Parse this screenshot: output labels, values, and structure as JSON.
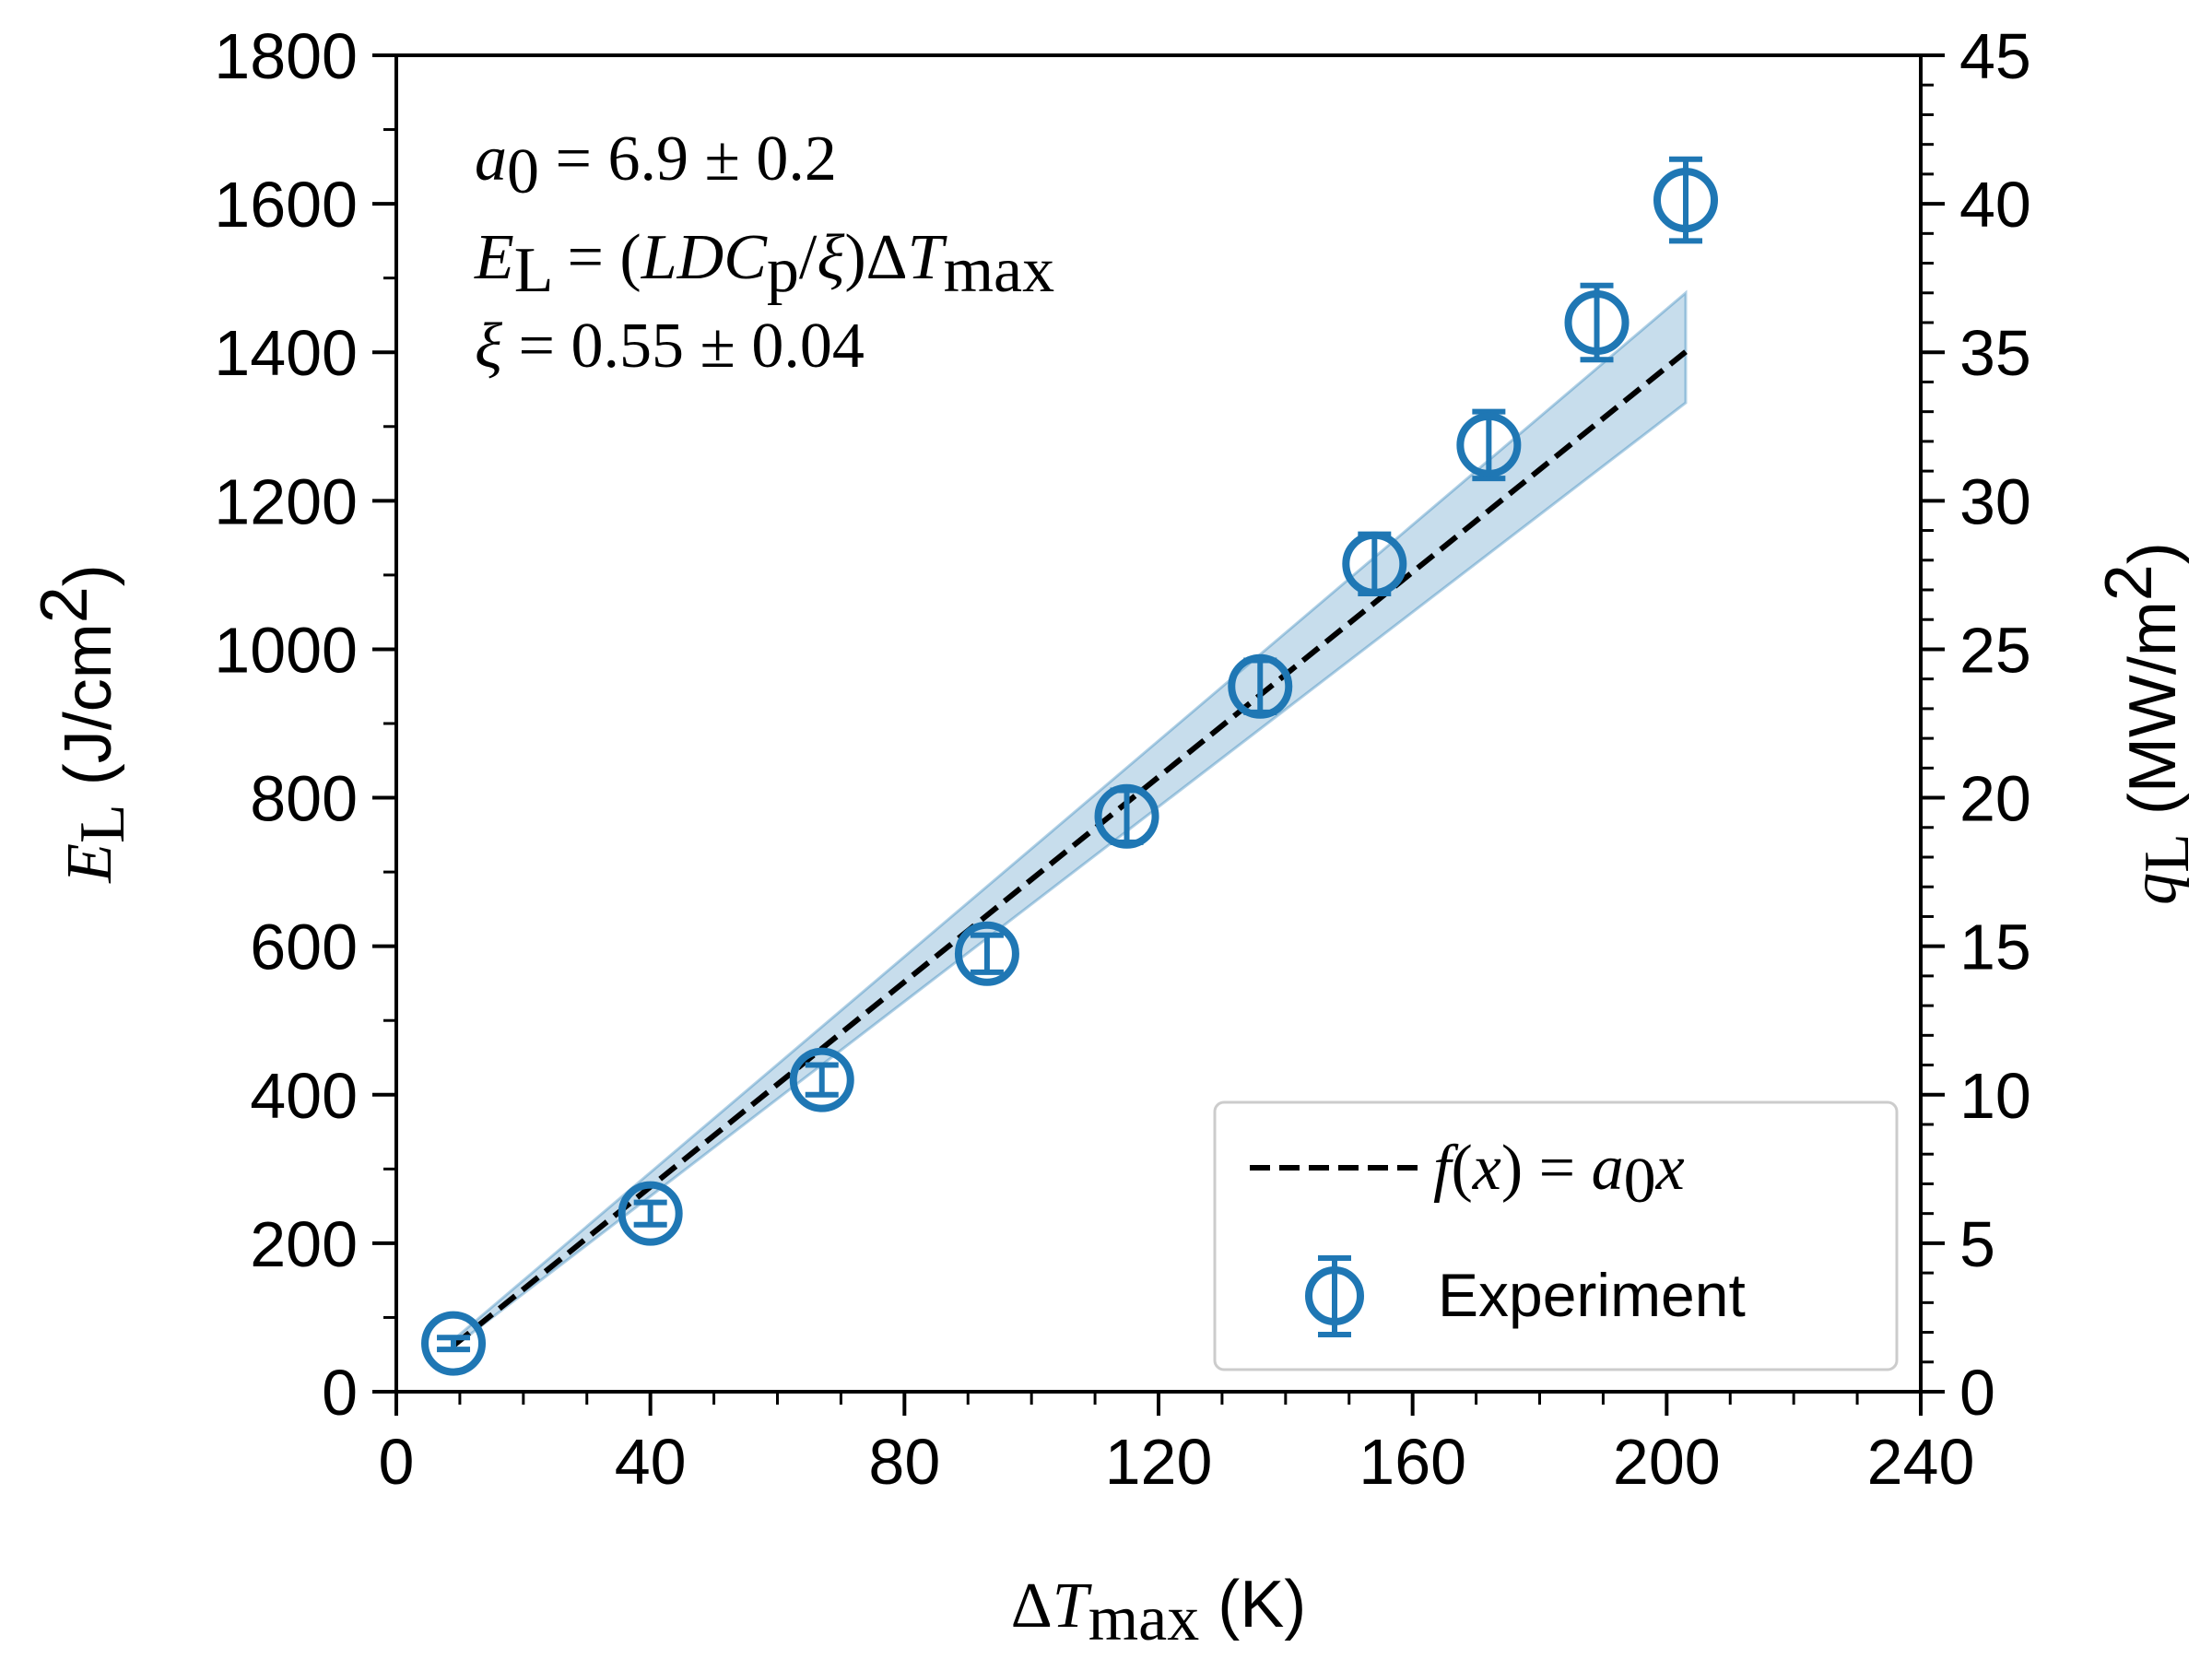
{
  "chart_data": {
    "type": "scatter",
    "title": "",
    "xlabel": "ΔT_max (K)",
    "ylabel_left": "E_L (J/cm²)",
    "ylabel_right": "q_L (MW/m²)",
    "xlim": [
      0,
      240
    ],
    "ylim": [
      0,
      1800
    ],
    "ylim_right": [
      0,
      45
    ],
    "x_ticks": [
      "0",
      "40",
      "80",
      "120",
      "160",
      "200",
      "240"
    ],
    "y_ticks": [
      "0",
      "200",
      "400",
      "600",
      "800",
      "1000",
      "1200",
      "1400",
      "1600",
      "1800"
    ],
    "y_ticks_right": [
      "0",
      "5",
      "10",
      "15",
      "20",
      "25",
      "30",
      "35",
      "40",
      "45"
    ],
    "grid": false,
    "legend_position": "bottom-right",
    "annotations": {
      "line1": "a0 = 6.9 ± 0.2",
      "line2": "E_L = (LDC_p/ξ)ΔT_max",
      "line3": "ξ = 0.55 ± 0.04"
    },
    "series": [
      {
        "name": "Experiment",
        "kind": "errorbar",
        "color": "#1f77b4",
        "x": [
          9,
          40,
          67,
          93,
          115,
          136,
          154,
          172,
          189,
          203
        ],
        "y": [
          65,
          240,
          420,
          590,
          775,
          950,
          1115,
          1275,
          1440,
          1605
        ],
        "yerr": [
          8,
          15,
          20,
          25,
          35,
          35,
          40,
          45,
          50,
          55
        ]
      },
      {
        "name": "f(x) = a0x",
        "kind": "fit-line",
        "color": "#000000",
        "slope": 6.9,
        "x_range": [
          9,
          203
        ]
      },
      {
        "kind": "band",
        "color": "#1f77b4",
        "x": [
          9,
          203
        ],
        "y_lower": [
          60,
          1332
        ],
        "y_upper": [
          70,
          1480
        ]
      }
    ]
  }
}
